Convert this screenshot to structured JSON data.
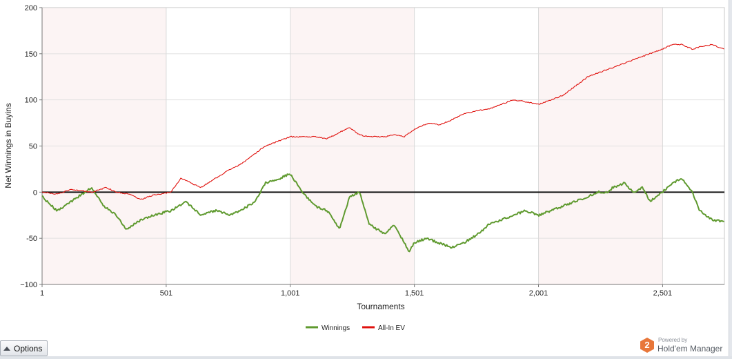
{
  "chart_data": {
    "type": "line",
    "title": "",
    "xlabel": "Tournaments",
    "ylabel": "Net Winnings in Buyins",
    "xlim": [
      1,
      2750
    ],
    "ylim": [
      -100,
      200
    ],
    "x_ticks": [
      1,
      501,
      1001,
      1501,
      2001,
      2501
    ],
    "x_tick_labels": [
      "1",
      "501",
      "1,001",
      "1,501",
      "2,001",
      "2,501"
    ],
    "y_ticks": [
      -100,
      -50,
      0,
      50,
      100,
      150,
      200
    ],
    "y_tick_labels": [
      "−100",
      "-50",
      "0",
      "50",
      "100",
      "150",
      "200"
    ],
    "grid": true,
    "legend_position": "bottom-center",
    "series": [
      {
        "name": "Winnings",
        "color": "#5f9a2f",
        "x": [
          1,
          60,
          120,
          200,
          250,
          300,
          340,
          400,
          450,
          520,
          580,
          640,
          700,
          760,
          800,
          860,
          900,
          960,
          1000,
          1050,
          1100,
          1150,
          1200,
          1240,
          1280,
          1320,
          1380,
          1420,
          1450,
          1480,
          1500,
          1550,
          1600,
          1650,
          1700,
          1760,
          1800,
          1850,
          1900,
          1950,
          2000,
          2050,
          2100,
          2150,
          2200,
          2240,
          2280,
          2300,
          2350,
          2380,
          2420,
          2450,
          2500,
          2540,
          2580,
          2620,
          2650,
          2700,
          2750
        ],
        "y": [
          -5,
          -20,
          -10,
          5,
          -15,
          -25,
          -40,
          -30,
          -25,
          -20,
          -10,
          -25,
          -20,
          -25,
          -20,
          -10,
          10,
          15,
          20,
          0,
          -15,
          -20,
          -40,
          -5,
          0,
          -35,
          -45,
          -35,
          -50,
          -65,
          -55,
          -50,
          -55,
          -60,
          -55,
          -45,
          -35,
          -30,
          -25,
          -20,
          -25,
          -20,
          -15,
          -10,
          -5,
          0,
          0,
          5,
          10,
          0,
          5,
          -10,
          0,
          10,
          15,
          0,
          -20,
          -30,
          -32
        ]
      },
      {
        "name": "All-In EV",
        "color": "#e0120e",
        "x": [
          1,
          60,
          120,
          200,
          260,
          300,
          350,
          400,
          450,
          520,
          560,
          600,
          640,
          700,
          760,
          800,
          850,
          900,
          950,
          1000,
          1050,
          1100,
          1150,
          1200,
          1240,
          1280,
          1320,
          1380,
          1420,
          1460,
          1500,
          1560,
          1600,
          1650,
          1700,
          1750,
          1800,
          1850,
          1900,
          1950,
          2000,
          2050,
          2100,
          2150,
          2200,
          2250,
          2300,
          2350,
          2400,
          2450,
          2500,
          2540,
          2580,
          2620,
          2660,
          2700,
          2750
        ],
        "y": [
          0,
          -2,
          3,
          0,
          5,
          0,
          -2,
          -8,
          -3,
          0,
          15,
          10,
          5,
          15,
          25,
          30,
          40,
          50,
          55,
          60,
          60,
          60,
          58,
          65,
          70,
          62,
          60,
          60,
          62,
          60,
          68,
          75,
          73,
          78,
          85,
          88,
          90,
          95,
          100,
          98,
          95,
          100,
          105,
          115,
          125,
          130,
          135,
          140,
          145,
          150,
          155,
          160,
          160,
          155,
          158,
          160,
          155
        ]
      }
    ]
  }
}
